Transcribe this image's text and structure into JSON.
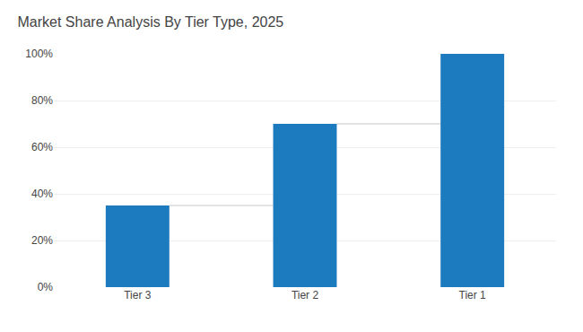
{
  "chart_data": {
    "type": "bar",
    "title": "Market Share Analysis By Tier Type, 2025",
    "categories": [
      "Tier 3",
      "Tier 2",
      "Tier 1"
    ],
    "values": [
      35,
      70,
      100
    ],
    "color": "#1c7abf",
    "ylim": [
      0,
      100
    ],
    "yticks": [
      {
        "value": 0,
        "label": "0%"
      },
      {
        "value": 20,
        "label": "20%"
      },
      {
        "value": 40,
        "label": "40%"
      },
      {
        "value": 60,
        "label": "60%"
      },
      {
        "value": 80,
        "label": "80%"
      },
      {
        "value": 100,
        "label": "100%"
      }
    ],
    "grid": true
  }
}
